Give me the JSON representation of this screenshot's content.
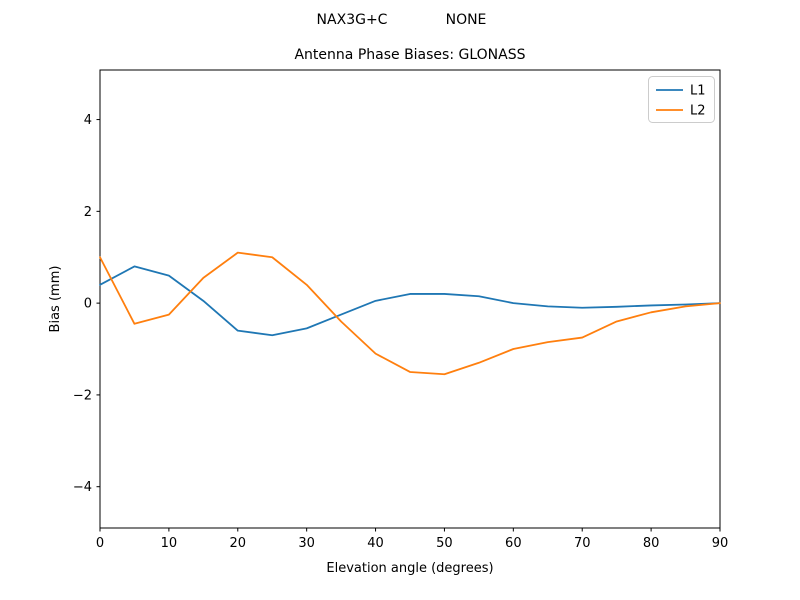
{
  "header": {
    "left": "NAX3G+C",
    "right": "NONE"
  },
  "chart_data": {
    "type": "line",
    "title": "Antenna Phase Biases: GLONASS",
    "xlabel": "Elevation angle (degrees)",
    "ylabel": "Bias (mm)",
    "xlim": [
      0,
      90
    ],
    "ylim": [
      -4.9,
      5.08
    ],
    "grid": false,
    "x": [
      0,
      5,
      10,
      15,
      20,
      25,
      30,
      35,
      40,
      45,
      50,
      55,
      60,
      65,
      70,
      75,
      80,
      85,
      90
    ],
    "series": [
      {
        "name": "L1",
        "color": "#1f77b4",
        "values": [
          0.4,
          0.8,
          0.6,
          0.05,
          -0.6,
          -0.7,
          -0.55,
          -0.25,
          0.05,
          0.2,
          0.2,
          0.15,
          0.0,
          -0.07,
          -0.1,
          -0.08,
          -0.05,
          -0.03,
          0.0
        ]
      },
      {
        "name": "L2",
        "color": "#ff7f0e",
        "values": [
          1.0,
          -0.45,
          -0.25,
          0.55,
          1.1,
          1.0,
          0.4,
          -0.4,
          -1.1,
          -1.5,
          -1.55,
          -1.3,
          -1.0,
          -0.85,
          -0.75,
          -0.4,
          -0.2,
          -0.07,
          0.0
        ]
      }
    ],
    "xticks": {
      "values": [
        0,
        10,
        20,
        30,
        40,
        50,
        60,
        70,
        80,
        90
      ],
      "labels": [
        "0",
        "10",
        "20",
        "30",
        "40",
        "50",
        "60",
        "70",
        "80",
        "90"
      ]
    },
    "yticks": {
      "values": [
        -4,
        -2,
        0,
        2,
        4
      ],
      "labels": [
        "−4",
        "−2",
        "0",
        "2",
        "4"
      ]
    },
    "legend": {
      "position": "upper right",
      "entries": [
        "L1",
        "L2"
      ]
    }
  },
  "colors": {
    "spine": "#000000",
    "legend_border": "#cccccc",
    "background": "#ffffff"
  }
}
